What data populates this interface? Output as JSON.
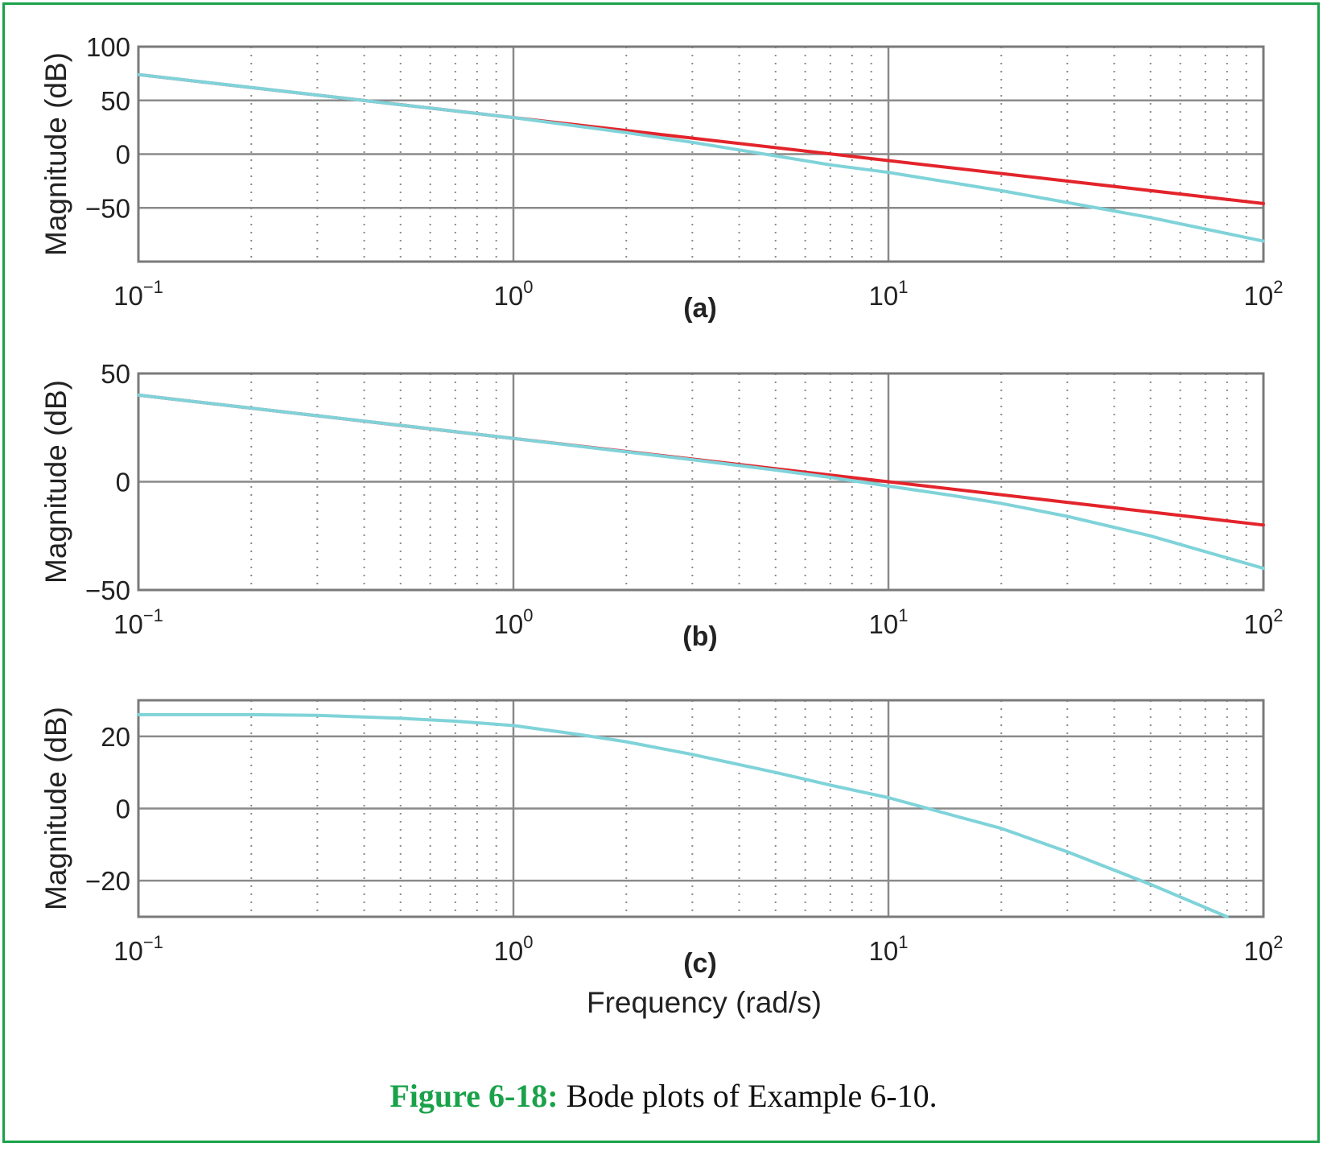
{
  "colors": {
    "frame": "#1aa24a",
    "red": "#e3242b",
    "cyan": "#7fd3d9",
    "grid": "#8a8a8a"
  },
  "xlabel": "Frequency (rad/s)",
  "caption": {
    "label": "Figure 6-18:",
    "text": "Bode plots of Example 6-10."
  },
  "chart_data": [
    {
      "type": "line",
      "panel_label": "(a)",
      "xscale": "log",
      "xlim": [
        0.1,
        100
      ],
      "ylim": [
        -100,
        100
      ],
      "ylabel": "Magnitude (dB)",
      "yticks": [
        100,
        50,
        0,
        -50
      ],
      "xticks": [
        "10",
        "10",
        "10",
        "10"
      ],
      "xtick_exponents": [
        "−1",
        "0",
        "1",
        "2"
      ],
      "grid": true,
      "series": [
        {
          "color": "#e3242b",
          "x": [
            0.1,
            100
          ],
          "y": [
            74,
            -46
          ]
        },
        {
          "color": "#7fd3d9",
          "x": [
            0.1,
            0.3,
            0.5,
            1,
            2,
            3,
            4.5,
            7,
            10,
            20,
            30,
            50,
            100
          ],
          "y": [
            74,
            55,
            46,
            34,
            20,
            11,
            1,
            -10,
            -17,
            -34,
            -45,
            -59,
            -81
          ]
        }
      ]
    },
    {
      "type": "line",
      "panel_label": "(b)",
      "xscale": "log",
      "xlim": [
        0.1,
        100
      ],
      "ylim": [
        -50,
        50
      ],
      "ylabel": "Magnitude (dB)",
      "yticks": [
        50,
        0,
        -50
      ],
      "xticks": [
        "10",
        "10",
        "10",
        "10"
      ],
      "xtick_exponents": [
        "−1",
        "0",
        "1",
        "2"
      ],
      "grid": true,
      "series": [
        {
          "color": "#e3242b",
          "x": [
            0.1,
            100
          ],
          "y": [
            40,
            -20
          ]
        },
        {
          "color": "#7fd3d9",
          "x": [
            0.1,
            0.3,
            1,
            2,
            3,
            5,
            7,
            10,
            15,
            20,
            30,
            50,
            100
          ],
          "y": [
            40,
            30.5,
            20,
            13.8,
            10.2,
            5.4,
            2,
            -2,
            -6.5,
            -10,
            -16,
            -25,
            -40
          ]
        }
      ]
    },
    {
      "type": "line",
      "panel_label": "(c)",
      "xscale": "log",
      "xlim": [
        0.1,
        100
      ],
      "ylim": [
        -30,
        30
      ],
      "ylabel": "Magnitude (dB)",
      "yticks": [
        20,
        0,
        -20
      ],
      "xticks": [
        "10",
        "10",
        "10",
        "10"
      ],
      "xtick_exponents": [
        "−1",
        "0",
        "1",
        "2"
      ],
      "grid": true,
      "series": [
        {
          "color": "#7fd3d9",
          "x": [
            0.1,
            0.2,
            0.3,
            0.5,
            0.7,
            1,
            1.5,
            2,
            3,
            5,
            7,
            10,
            15,
            20,
            30,
            50,
            80
          ],
          "y": [
            26,
            26,
            25.8,
            25,
            24.2,
            23,
            20.5,
            18.5,
            15,
            10,
            6.5,
            3,
            -2,
            -5.5,
            -12,
            -21,
            -30
          ]
        }
      ]
    }
  ]
}
